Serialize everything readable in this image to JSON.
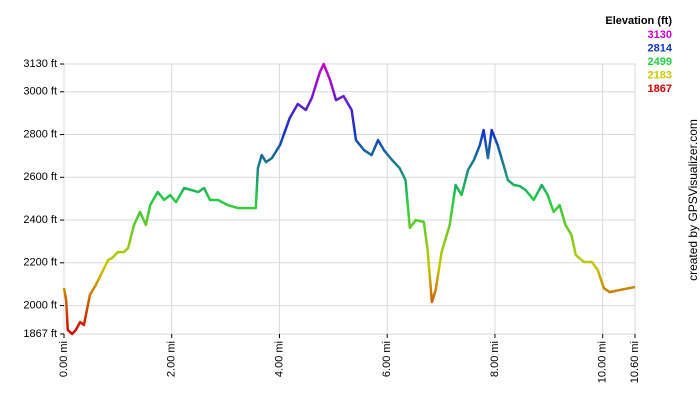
{
  "chart_data": {
    "type": "line",
    "legend_title": "Elevation (ft)",
    "legend": [
      {
        "value": 3130,
        "color": "#cc00cc"
      },
      {
        "value": 2814,
        "color": "#1133cc"
      },
      {
        "value": 2499,
        "color": "#22cc44"
      },
      {
        "value": 2183,
        "color": "#c8c800"
      },
      {
        "value": 1867,
        "color": "#cc0000"
      }
    ],
    "credit": "created by GPSVisualizer.com",
    "grid": true,
    "xlim": [
      0,
      10.6
    ],
    "ylim": [
      1867,
      3130
    ],
    "xticks": [
      {
        "value": 0,
        "label": "0.00 mi"
      },
      {
        "value": 2,
        "label": "2.00 mi"
      },
      {
        "value": 4,
        "label": "4.00 mi"
      },
      {
        "value": 6,
        "label": "6.00 mi"
      },
      {
        "value": 8,
        "label": "8.00 mi"
      },
      {
        "value": 10,
        "label": "10.00 mi"
      },
      {
        "value": 10.6,
        "label": "10.60 mi"
      }
    ],
    "yticks": [
      {
        "value": 1867,
        "label": "1867 ft"
      },
      {
        "value": 2000,
        "label": "2000 ft"
      },
      {
        "value": 2200,
        "label": "2200 ft"
      },
      {
        "value": 2400,
        "label": "2400 ft"
      },
      {
        "value": 2600,
        "label": "2600 ft"
      },
      {
        "value": 2800,
        "label": "2800 ft"
      },
      {
        "value": 3000,
        "label": "3000 ft"
      },
      {
        "value": 3130,
        "label": "3130 ft"
      }
    ],
    "x": [
      0,
      0.04,
      0.07,
      0.15,
      0.22,
      0.3,
      0.37,
      0.48,
      0.59,
      0.71,
      0.82,
      0.89,
      1.0,
      1.11,
      1.19,
      1.3,
      1.41,
      1.52,
      1.6,
      1.74,
      1.86,
      1.97,
      2.08,
      2.23,
      2.37,
      2.49,
      2.6,
      2.71,
      2.86,
      3.04,
      3.23,
      3.45,
      3.56,
      3.6,
      3.67,
      3.75,
      3.86,
      4.01,
      4.19,
      4.34,
      4.49,
      4.6,
      4.75,
      4.82,
      4.94,
      5.05,
      5.19,
      5.34,
      5.42,
      5.57,
      5.71,
      5.83,
      5.94,
      6.09,
      6.23,
      6.34,
      6.42,
      6.53,
      6.68,
      6.75,
      6.83,
      6.9,
      7.01,
      7.16,
      7.27,
      7.38,
      7.5,
      7.61,
      7.72,
      7.79,
      7.87,
      7.94,
      8.05,
      8.16,
      8.24,
      8.35,
      8.46,
      8.57,
      8.72,
      8.87,
      8.98,
      9.09,
      9.2,
      9.31,
      9.42,
      9.5,
      9.65,
      9.8,
      9.91,
      10.02,
      10.13,
      10.32,
      10.6
    ],
    "series": [
      {
        "name": "Elevation",
        "values": [
          2082,
          2026,
          1886,
          1867,
          1886,
          1923,
          1909,
          2049,
          2096,
          2157,
          2213,
          2222,
          2250,
          2250,
          2269,
          2377,
          2438,
          2377,
          2470,
          2531,
          2494,
          2517,
          2484,
          2550,
          2540,
          2531,
          2550,
          2494,
          2494,
          2470,
          2456,
          2456,
          2456,
          2643,
          2704,
          2671,
          2690,
          2751,
          2877,
          2943,
          2915,
          2971,
          3092,
          3130,
          3055,
          2961,
          2980,
          2915,
          2774,
          2727,
          2704,
          2774,
          2727,
          2681,
          2643,
          2587,
          2363,
          2400,
          2391,
          2260,
          2017,
          2073,
          2250,
          2377,
          2564,
          2517,
          2634,
          2681,
          2751,
          2821,
          2690,
          2821,
          2751,
          2657,
          2587,
          2564,
          2559,
          2540,
          2494,
          2564,
          2517,
          2438,
          2470,
          2377,
          2330,
          2237,
          2204,
          2204,
          2166,
          2082,
          2063,
          2073,
          2087
        ]
      }
    ]
  }
}
